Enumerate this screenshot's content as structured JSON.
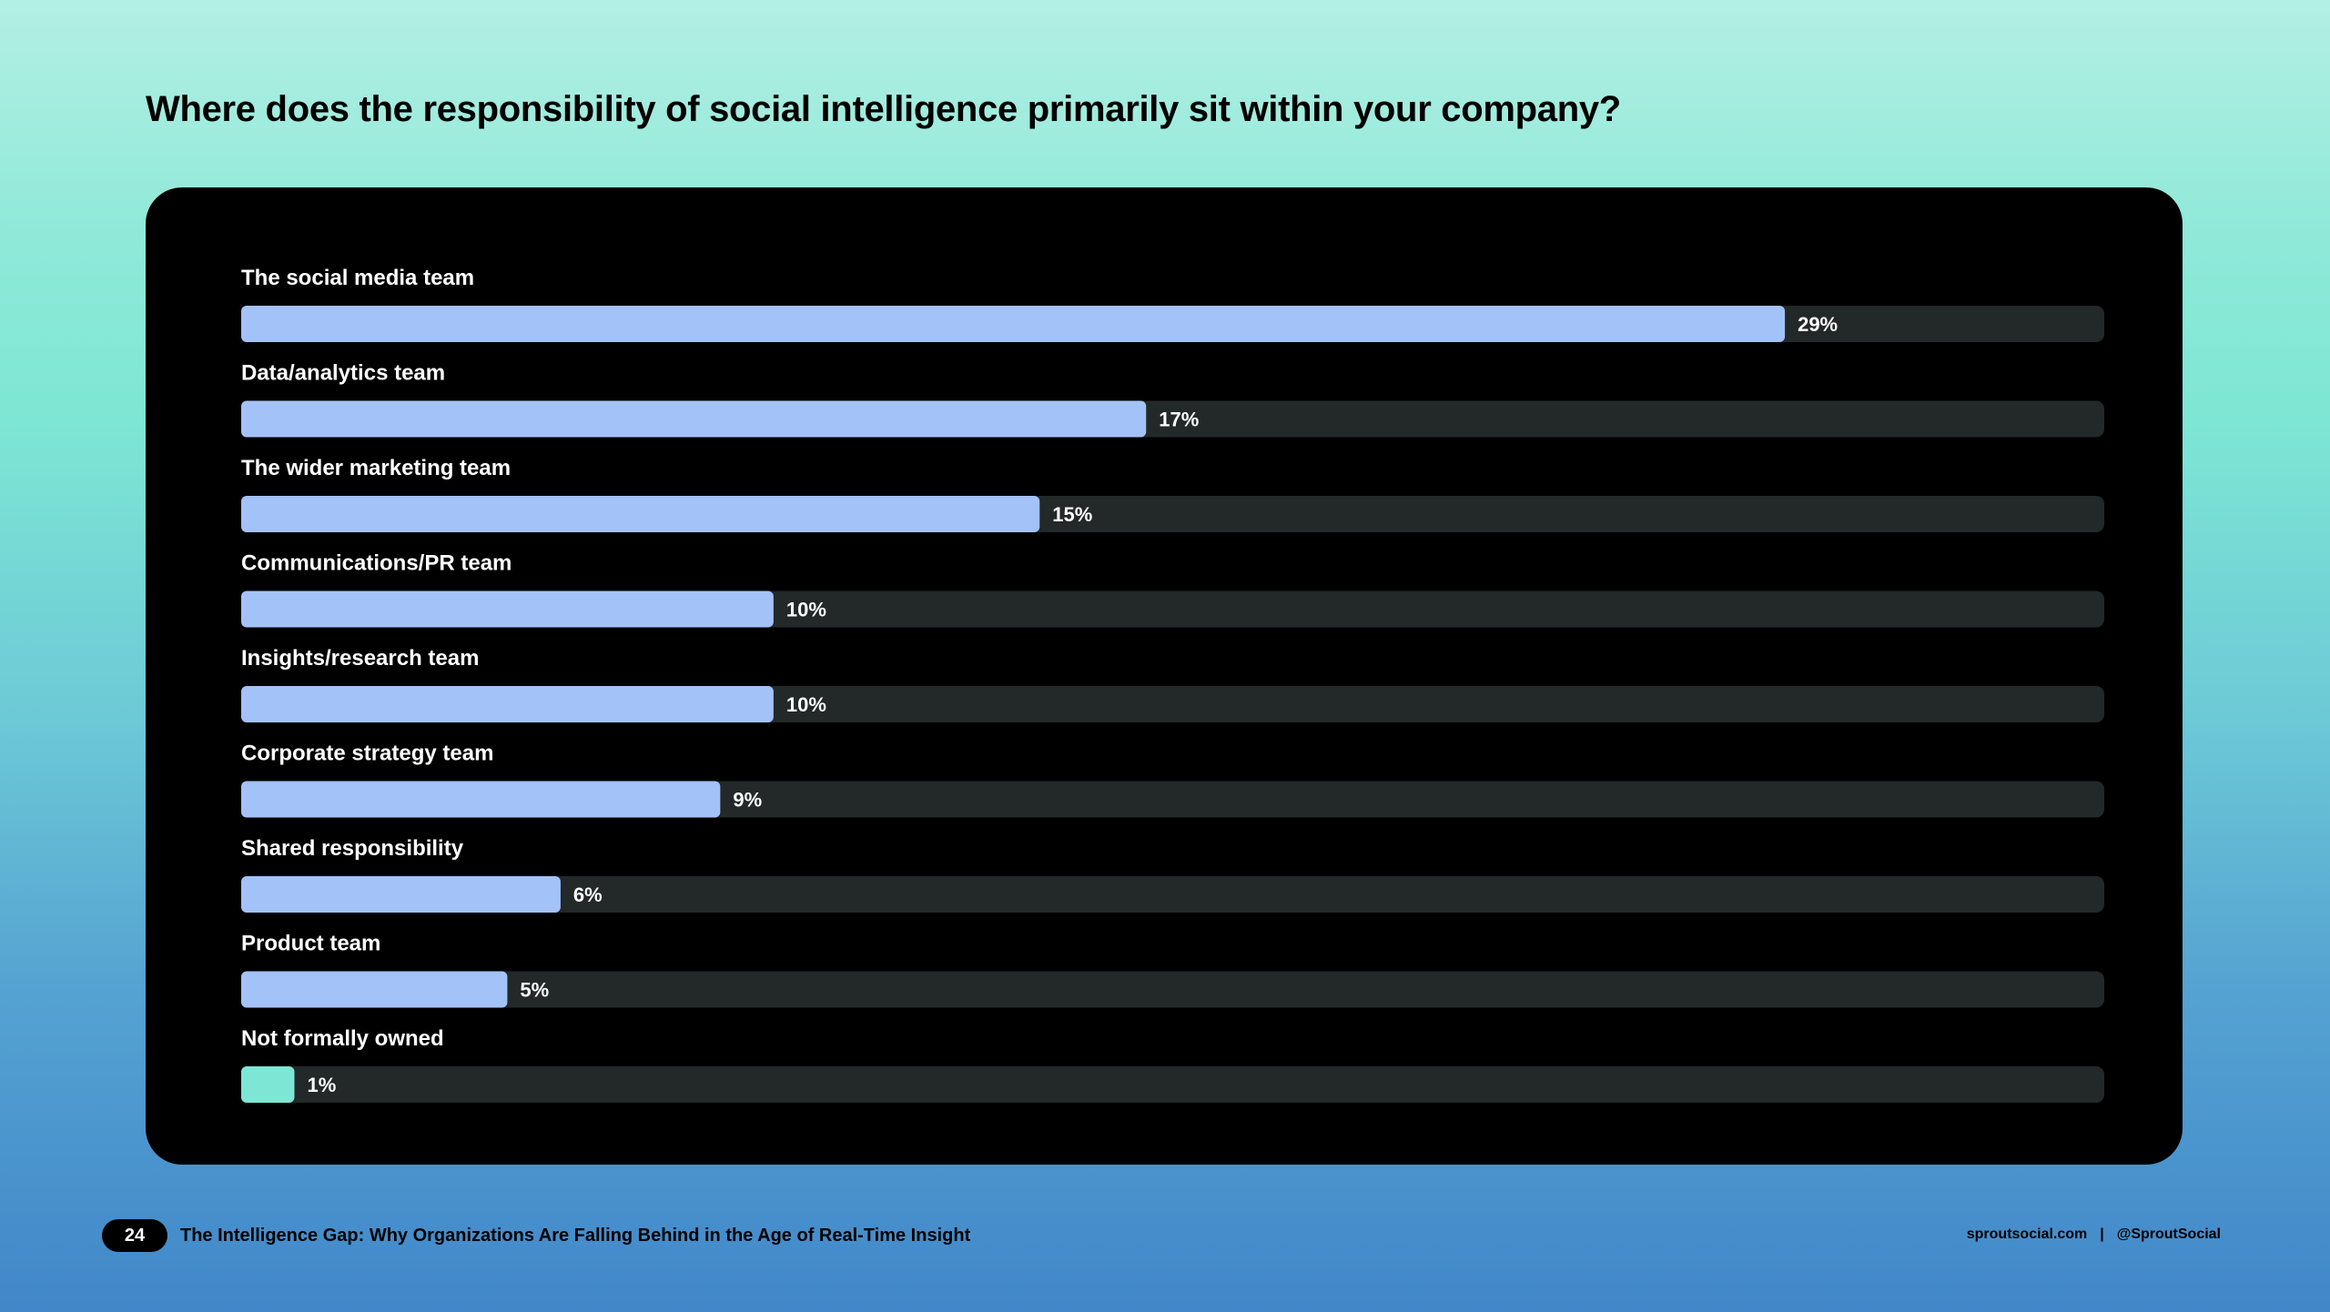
{
  "page": {
    "title": "Where does the responsibility of social intelligence primarily sit within your company?"
  },
  "colors": {
    "track": "#232828",
    "bar": "#a3c2f7",
    "bar_highlight": "#7de6d5",
    "card": "#000000"
  },
  "chart_data": {
    "type": "bar",
    "orientation": "horizontal",
    "categories": [
      "The social media team",
      "Data/analytics team",
      "The wider marketing team",
      "Communications/PR team",
      "Insights/research team",
      "Corporate strategy team",
      "Shared responsibility",
      "Product team",
      "Not formally owned"
    ],
    "values": [
      29,
      17,
      15,
      10,
      10,
      9,
      6,
      5,
      1
    ],
    "value_labels": [
      "29%",
      "17%",
      "15%",
      "10%",
      "10%",
      "9%",
      "6%",
      "5%",
      "1%"
    ],
    "unit": "%",
    "xlim": [
      0,
      35
    ],
    "title": "Where does the responsibility of social intelligence primarily sit within your company?",
    "xlabel": "",
    "ylabel": "",
    "grid": false,
    "legend": "none"
  },
  "footer": {
    "page_number": "24",
    "report_title": "The Intelligence Gap: Why Organizations Are Falling Behind in the Age of Real-Time Insight",
    "site": "sproutsocial.com",
    "separator": "|",
    "handle": "@SproutSocial"
  }
}
